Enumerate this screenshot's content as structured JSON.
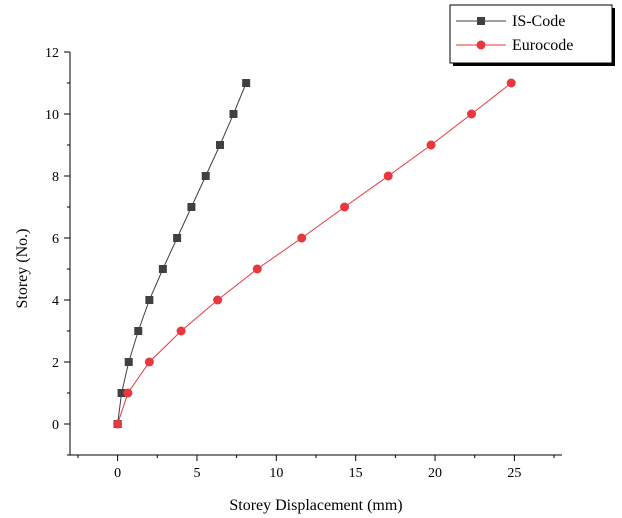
{
  "chart_data": {
    "type": "line",
    "title": "",
    "xlabel": "Storey Displacement (mm)",
    "ylabel": "Storey (No.)",
    "xlim": [
      -3,
      28
    ],
    "ylim": [
      -1,
      12
    ],
    "xticks": [
      0,
      5,
      10,
      15,
      20,
      25
    ],
    "yticks": [
      0,
      2,
      4,
      6,
      8,
      10,
      12
    ],
    "grid": false,
    "legend": "top-right",
    "series": [
      {
        "name": "IS-Code",
        "marker": "square",
        "color": "#404040",
        "x": [
          0,
          0.25,
          0.7,
          1.3,
          2.0,
          2.85,
          3.75,
          4.65,
          5.55,
          6.45,
          7.3,
          8.1
        ],
        "y": [
          0,
          1,
          2,
          3,
          4,
          5,
          6,
          7,
          8,
          9,
          10,
          11
        ]
      },
      {
        "name": "Eurocode",
        "marker": "circle",
        "color": "#e8373d",
        "x": [
          0,
          0.65,
          2.0,
          4.0,
          6.3,
          8.8,
          11.6,
          14.3,
          17.05,
          19.75,
          22.3,
          24.8
        ],
        "y": [
          0,
          1,
          2,
          3,
          4,
          5,
          6,
          7,
          8,
          9,
          10,
          11
        ]
      }
    ]
  }
}
